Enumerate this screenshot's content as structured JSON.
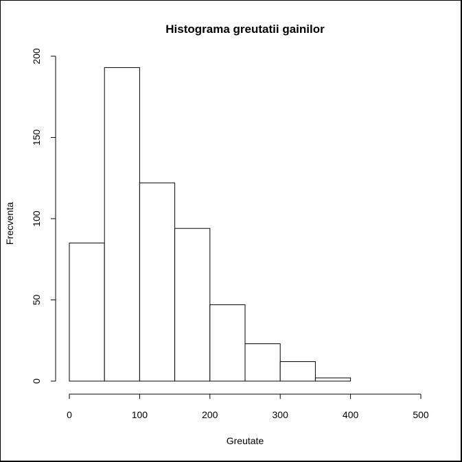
{
  "chart_data": {
    "type": "bar",
    "title": "Histograma greutatii gainilor",
    "xlabel": "Greutate",
    "ylabel": "Frecventa",
    "bins": [
      {
        "start": 0,
        "end": 50,
        "count": 85
      },
      {
        "start": 50,
        "end": 100,
        "count": 193
      },
      {
        "start": 100,
        "end": 150,
        "count": 122
      },
      {
        "start": 150,
        "end": 200,
        "count": 94
      },
      {
        "start": 200,
        "end": 250,
        "count": 47
      },
      {
        "start": 250,
        "end": 300,
        "count": 23
      },
      {
        "start": 300,
        "end": 350,
        "count": 12
      },
      {
        "start": 350,
        "end": 400,
        "count": 2
      }
    ],
    "xlim": [
      0,
      500
    ],
    "ylim": [
      0,
      200
    ],
    "xticks": [
      "0",
      "100",
      "200",
      "300",
      "400",
      "500"
    ],
    "yticks": [
      "0",
      "50",
      "100",
      "150",
      "200"
    ],
    "grid": false,
    "colors": {
      "bar_fill": "#ffffff",
      "bar_stroke": "#000000",
      "axis": "#000000"
    }
  }
}
